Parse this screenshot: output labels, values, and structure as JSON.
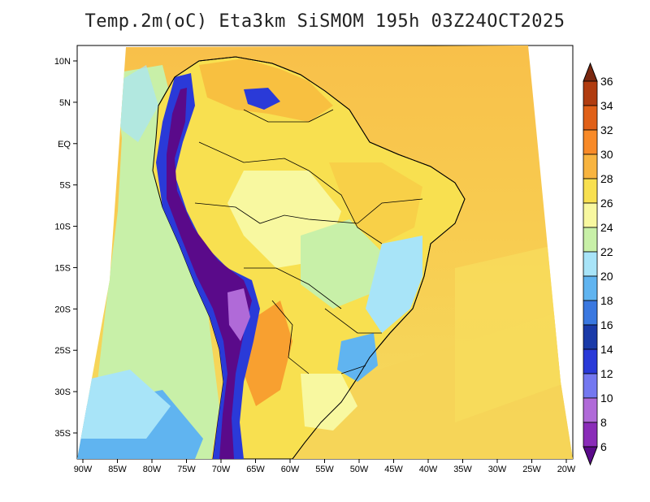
{
  "title": "Temp.2m(oC) Eta3km SiSMOM 195h 03Z24OCT2025",
  "map": {
    "variable": "2 m temperature",
    "units": "oC",
    "projection_label": "Lambert conformal (approx.)",
    "lon_ticks": [
      "90W",
      "85W",
      "80W",
      "75W",
      "70W",
      "65W",
      "60W",
      "55W",
      "50W",
      "45W",
      "40W",
      "35W",
      "30W",
      "25W",
      "20W"
    ],
    "lat_ticks": [
      "10N",
      "5N",
      "EQ",
      "5S",
      "10S",
      "15S",
      "20S",
      "25S",
      "30S",
      "35S"
    ]
  },
  "colorbar": {
    "levels": [
      "6",
      "8",
      "10",
      "12",
      "14",
      "16",
      "18",
      "20",
      "22",
      "24",
      "26",
      "28",
      "30",
      "32",
      "34",
      "36"
    ],
    "colors": [
      "#5a0a8a",
      "#8a2cb8",
      "#b06ad8",
      "#7478f0",
      "#2a3ad8",
      "#1a3aa8",
      "#3a78e0",
      "#60b4f0",
      "#a8e4f8",
      "#c8f0a8",
      "#f8f8a0",
      "#f8e050",
      "#f8b440",
      "#f88a28",
      "#e06018",
      "#b03c10",
      "#7a2810"
    ]
  },
  "colors": {
    "ocean_north": "#f8c04a",
    "ocean_south": "#f8dc58",
    "coast_outline": "#000000"
  }
}
